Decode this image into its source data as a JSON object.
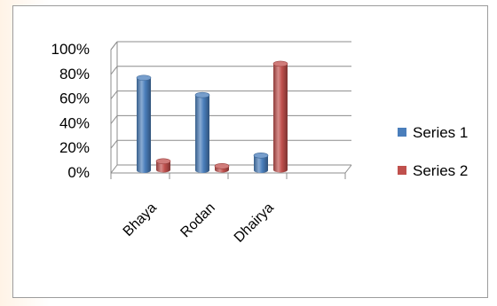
{
  "chart_data": {
    "type": "bar",
    "style": "3d-cylinder",
    "categories": [
      "Bhaya",
      "Rodan",
      "Dhairya"
    ],
    "series": [
      {
        "name": "Series 1",
        "values": [
          75,
          61,
          12
        ],
        "color": "#4a7ebb"
      },
      {
        "name": "Series 2",
        "values": [
          7,
          3,
          86
        ],
        "color": "#c0504d"
      }
    ],
    "ylim": [
      0,
      100
    ],
    "yticks": [
      "0%",
      "20%",
      "40%",
      "60%",
      "80%",
      "100%"
    ],
    "grid": true,
    "legend_position": "right"
  }
}
